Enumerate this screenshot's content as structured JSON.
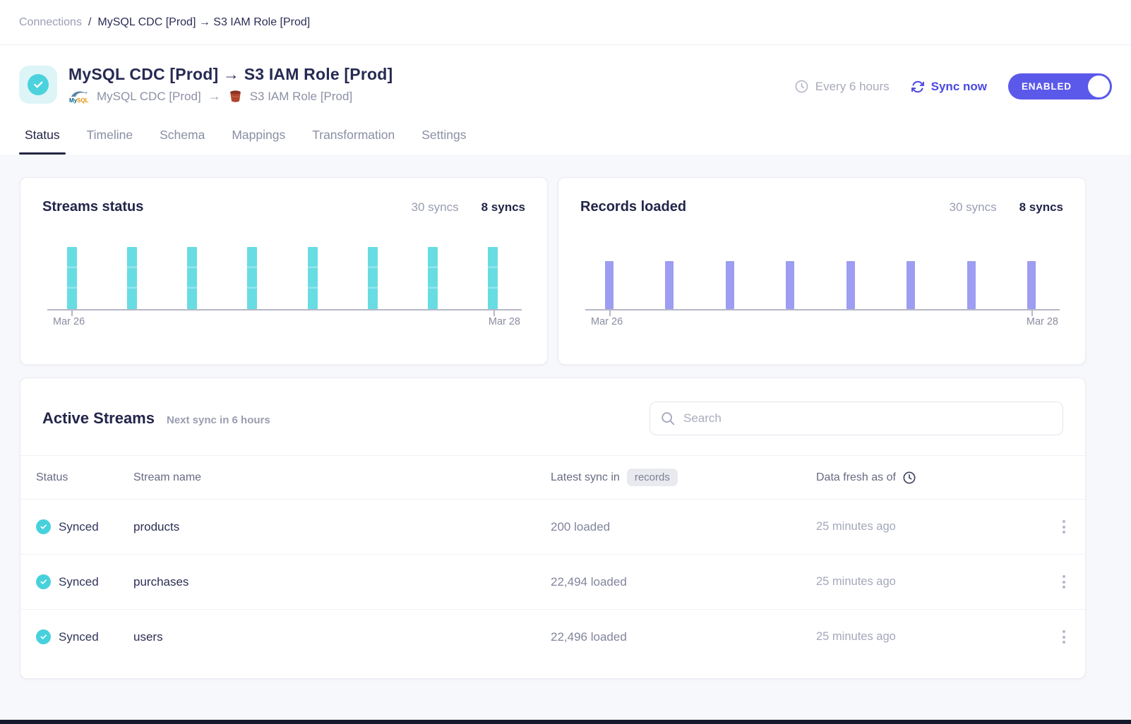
{
  "breadcrumb": {
    "root": "Connections",
    "separator": "/",
    "current": "MySQL CDC [Prod] → S3 IAM Role [Prod]"
  },
  "header": {
    "title": "MySQL CDC [Prod] → S3 IAM Role [Prod]",
    "source_name": "MySQL CDC [Prod]",
    "arrow": "→",
    "destination_name": "S3 IAM Role [Prod]",
    "schedule_label": "Every 6 hours",
    "sync_now_label": "Sync now",
    "enabled_label": "ENABLED"
  },
  "tabs": [
    {
      "label": "Status",
      "active": true
    },
    {
      "label": "Timeline",
      "active": false
    },
    {
      "label": "Schema",
      "active": false
    },
    {
      "label": "Mappings",
      "active": false
    },
    {
      "label": "Transformation",
      "active": false
    },
    {
      "label": "Settings",
      "active": false
    }
  ],
  "chart_data": [
    {
      "type": "bar",
      "title": "Streams status",
      "legend_toggles": [
        "30 syncs",
        "8 syncs"
      ],
      "active_toggle": "8 syncs",
      "num_bars": 8,
      "values": [
        3,
        3,
        3,
        3,
        3,
        3,
        3,
        3
      ],
      "segments_per_bar": 3,
      "bar_color": "#68dce3",
      "segment_divider_color": "#93e6eb",
      "x_axis": {
        "start_label": "Mar 26",
        "end_label": "Mar 28"
      },
      "legend_position": "top-right",
      "grid": false
    },
    {
      "type": "bar",
      "title": "Records loaded",
      "legend_toggles": [
        "30 syncs",
        "8 syncs"
      ],
      "active_toggle": "8 syncs",
      "num_bars": 8,
      "values": [
        1,
        1,
        1,
        1,
        1,
        1,
        1,
        1
      ],
      "segments_per_bar": 1,
      "bar_color": "#9d9df2",
      "x_axis": {
        "start_label": "Mar 26",
        "end_label": "Mar 28"
      },
      "legend_position": "top-right",
      "grid": false
    }
  ],
  "active_streams": {
    "title": "Active Streams",
    "subtitle": "Next sync in 6 hours",
    "search_placeholder": "Search",
    "columns": {
      "status": "Status",
      "stream_name": "Stream name",
      "latest_sync": "Latest sync in",
      "latest_sync_badge": "records",
      "data_fresh": "Data fresh as of"
    },
    "rows": [
      {
        "status": "Synced",
        "name": "products",
        "records": "200 loaded",
        "fresh": "25 minutes ago"
      },
      {
        "status": "Synced",
        "name": "purchases",
        "records": "22,494 loaded",
        "fresh": "25 minutes ago"
      },
      {
        "status": "Synced",
        "name": "users",
        "records": "22,496 loaded",
        "fresh": "25 minutes ago"
      }
    ]
  },
  "colors": {
    "accent_purple": "#5b59ea",
    "teal_status": "#47d1dc",
    "bar_teal": "#68dce3",
    "bar_purple": "#9d9df2",
    "dark_navy": "#262a52"
  }
}
